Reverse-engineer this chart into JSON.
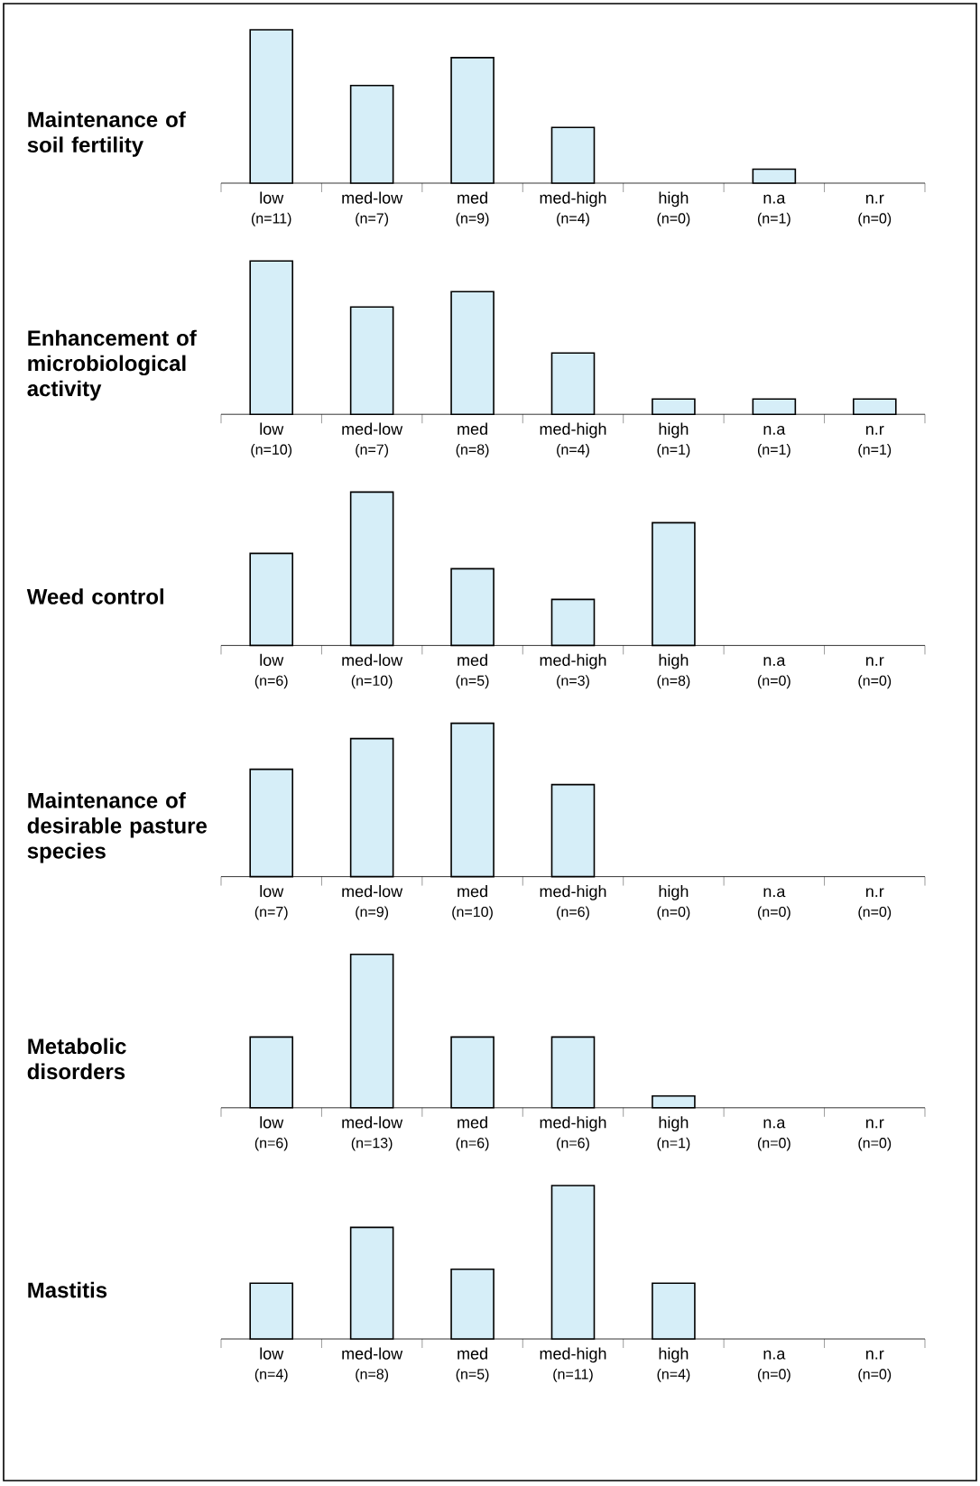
{
  "chart_data": [
    {
      "type": "bar",
      "title": "Maintenance of soil fertility",
      "categories": [
        "low",
        "med-low",
        "med",
        "med-high",
        "high",
        "n.a",
        "n.r"
      ],
      "values": [
        11,
        7,
        9,
        4,
        0,
        1,
        0
      ],
      "value_labels": [
        "(n=11)",
        "(n=7)",
        "(n=9)",
        "(n=4)",
        "(n=0)",
        "(n=1)",
        "(n=0)"
      ],
      "color": "#d6eef8"
    },
    {
      "type": "bar",
      "title": "Enhancement of microbiological activity",
      "categories": [
        "low",
        "med-low",
        "med",
        "med-high",
        "high",
        "n.a",
        "n.r"
      ],
      "values": [
        10,
        7,
        8,
        4,
        1,
        1,
        1
      ],
      "value_labels": [
        "(n=10)",
        "(n=7)",
        "(n=8)",
        "(n=4)",
        "(n=1)",
        "(n=1)",
        "(n=1)"
      ],
      "color": "#d6eef8"
    },
    {
      "type": "bar",
      "title": "Weed control",
      "categories": [
        "low",
        "med-low",
        "med",
        "med-high",
        "high",
        "n.a",
        "n.r"
      ],
      "values": [
        6,
        10,
        5,
        3,
        8,
        0,
        0
      ],
      "value_labels": [
        "(n=6)",
        "(n=10)",
        "(n=5)",
        "(n=3)",
        "(n=8)",
        "(n=0)",
        "(n=0)"
      ],
      "color": "#d6eef8"
    },
    {
      "type": "bar",
      "title": "Maintenance of desirable pasture species",
      "categories": [
        "low",
        "med-low",
        "med",
        "med-high",
        "high",
        "n.a",
        "n.r"
      ],
      "values": [
        7,
        9,
        10,
        6,
        0,
        0,
        0
      ],
      "value_labels": [
        "(n=7)",
        "(n=9)",
        "(n=10)",
        "(n=6)",
        "(n=0)",
        "(n=0)",
        "(n=0)"
      ],
      "color": "#d6eef8"
    },
    {
      "type": "bar",
      "title": "Metabolic disorders",
      "categories": [
        "low",
        "med-low",
        "med",
        "med-high",
        "high",
        "n.a",
        "n.r"
      ],
      "values": [
        6,
        13,
        6,
        6,
        1,
        0,
        0
      ],
      "value_labels": [
        "(n=6)",
        "(n=13)",
        "(n=6)",
        "(n=6)",
        "(n=1)",
        "(n=0)",
        "(n=0)"
      ],
      "color": "#d6eef8"
    },
    {
      "type": "bar",
      "title": "Mastitis",
      "categories": [
        "low",
        "med-low",
        "med",
        "med-high",
        "high",
        "n.a",
        "n.r"
      ],
      "values": [
        4,
        8,
        5,
        11,
        4,
        0,
        0
      ],
      "value_labels": [
        "(n=4)",
        "(n=8)",
        "(n=5)",
        "(n=11)",
        "(n=4)",
        "(n=0)",
        "(n=0)"
      ],
      "color": "#d6eef8"
    }
  ]
}
